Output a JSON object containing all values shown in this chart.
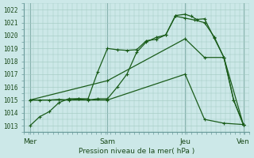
{
  "title": "",
  "xlabel": "Pression niveau de la mer( hPa )",
  "ylim": [
    1012.5,
    1022.5
  ],
  "yticks": [
    1013,
    1014,
    1015,
    1016,
    1017,
    1018,
    1019,
    1020,
    1021,
    1022
  ],
  "xtick_labels": [
    "Mer",
    "Sam",
    "Jeu",
    "Ven"
  ],
  "xtick_positions": [
    0,
    4,
    8,
    11
  ],
  "bg_color": "#cce8e8",
  "grid_color": "#a0c8c0",
  "line_color": "#1a5c1a",
  "line1_x": [
    0,
    0.5,
    1.0,
    1.5,
    2.0,
    2.5,
    3.0,
    3.5,
    4.0,
    4.5,
    5.0,
    5.5,
    6.0,
    6.5,
    7.0,
    7.5,
    8.0,
    8.3,
    8.6,
    9.0,
    9.5,
    10.0,
    10.5,
    11.0
  ],
  "line1_y": [
    1013.0,
    1013.7,
    1014.1,
    1014.8,
    1015.1,
    1015.1,
    1015.0,
    1015.1,
    1015.1,
    1016.0,
    1017.0,
    1018.7,
    1019.5,
    1019.85,
    1020.05,
    1021.55,
    1021.65,
    1021.5,
    1021.25,
    1021.3,
    1019.8,
    1018.3,
    1015.0,
    1013.1
  ],
  "line2_x": [
    0,
    0.5,
    1.0,
    1.5,
    2.0,
    2.5,
    3.0,
    3.5,
    4.0,
    4.5,
    5.0,
    5.5,
    6.0,
    6.5,
    7.0,
    7.5,
    8.0,
    8.5,
    9.0,
    9.5,
    10.0,
    10.5,
    11.0
  ],
  "line2_y": [
    1015.0,
    1015.0,
    1015.0,
    1015.05,
    1015.0,
    1015.1,
    1015.1,
    1017.2,
    1019.0,
    1018.9,
    1018.85,
    1018.9,
    1019.6,
    1019.7,
    1020.05,
    1021.5,
    1021.35,
    1021.2,
    1021.0,
    1019.9,
    1018.3,
    1015.0,
    1013.1
  ],
  "line3_x": [
    0,
    4,
    8,
    9,
    10,
    11
  ],
  "line3_y": [
    1015.0,
    1016.5,
    1019.75,
    1018.3,
    1018.3,
    1013.1
  ],
  "line4_x": [
    0,
    4,
    8,
    9,
    10,
    11
  ],
  "line4_y": [
    1015.0,
    1015.0,
    1017.0,
    1013.5,
    1013.2,
    1013.1
  ]
}
